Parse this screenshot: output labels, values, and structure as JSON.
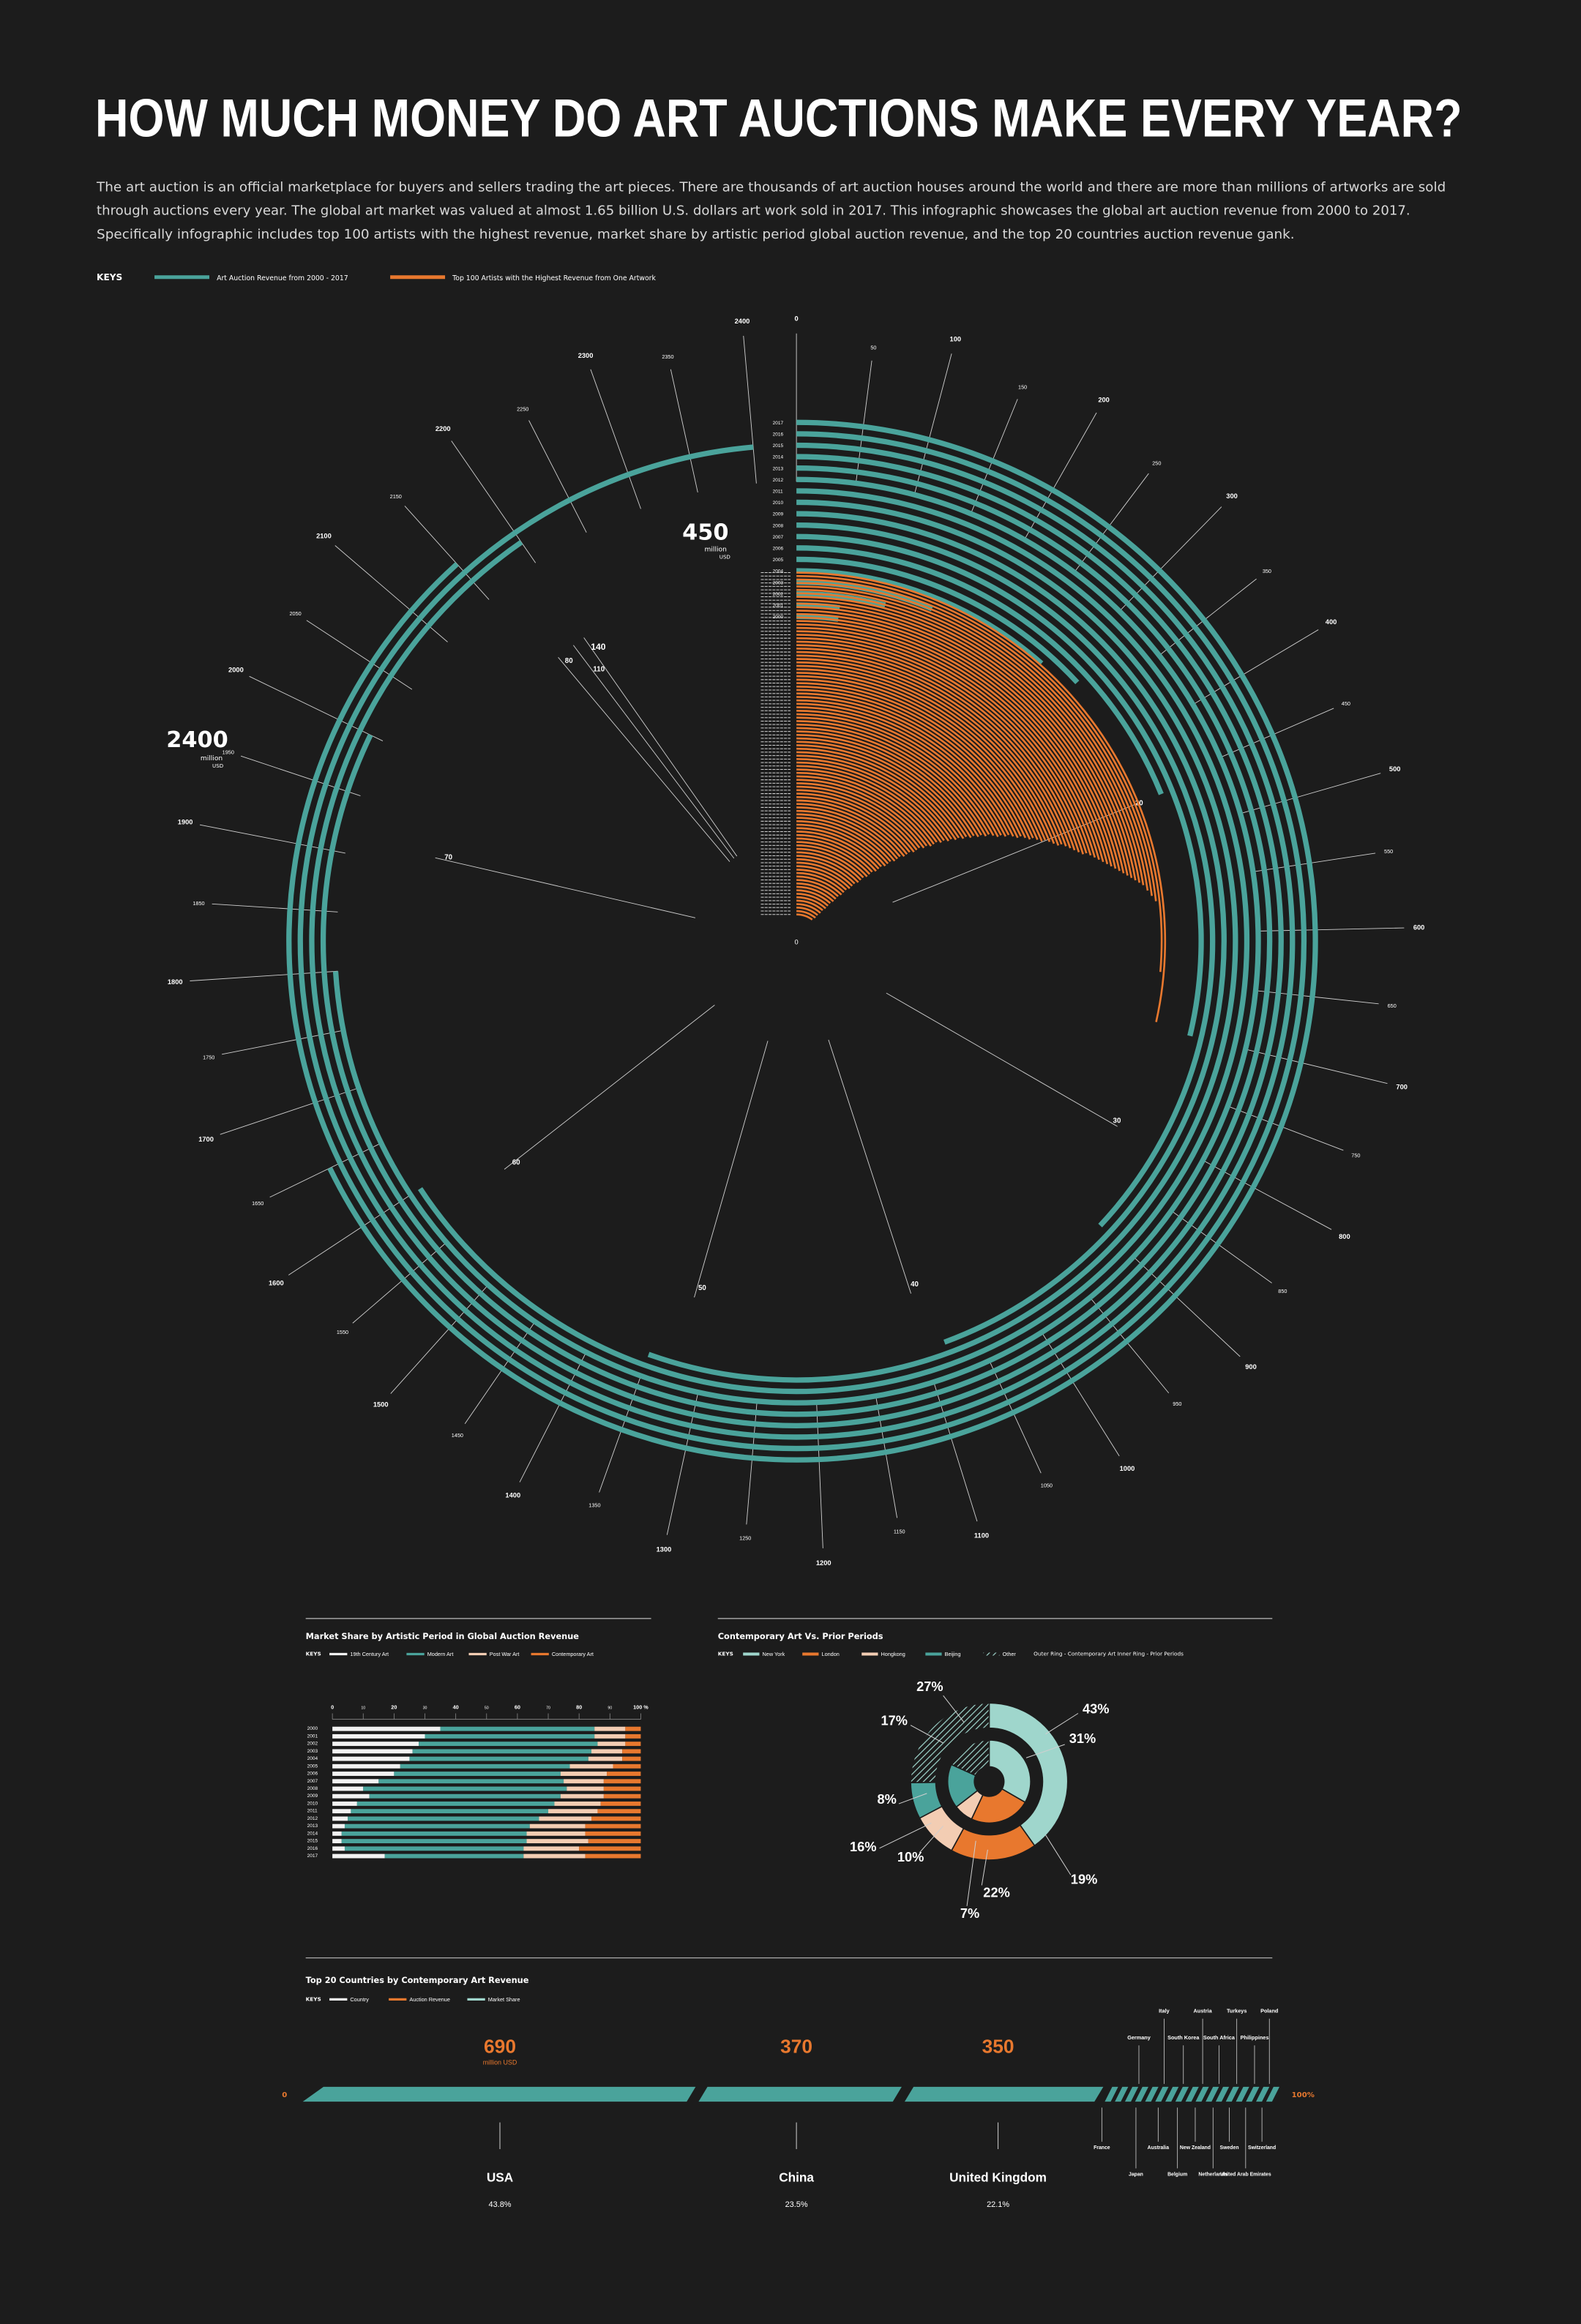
{
  "title": "HOW MUCH MONEY DO ART AUCTIONS MAKE EVERY YEAR?",
  "intro": [
    "The art auction is an official marketplace for buyers and sellers trading the art pieces. There are thousands of art auction houses around the world and there are more than millions of artworks are sold",
    "through auctions every year. The global art market was valued at almost 1.65 billion U.S. dollars art work sold in 2017. This infographic showcases the global art auction revenue from 2000 to 2017.",
    "Specifically infographic includes top 100 artists with the highest revenue, market share by artistic period global auction revenue, and the top 20 countries auction revenue gank."
  ],
  "keys": {
    "label": "KEYS",
    "items": [
      {
        "label": "Art Auction Revenue from 2000 - 2017",
        "color": "#4aa39b"
      },
      {
        "label": "Top 100 Artists with the Highest Revenue from One Artwork",
        "color": "#e8782e"
      }
    ]
  },
  "colors": {
    "teal": "#4aa39b",
    "orange": "#e8782e",
    "peach": "#f3cdb3",
    "mint": "#9fd6cc",
    "white": "#f2f2f2",
    "bg": "#1c1c1c"
  },
  "radial": {
    "teal_max_label": "2400",
    "teal_unit": "million",
    "teal_unit2": "USD",
    "orange_max_label": "450",
    "orange_unit": "million",
    "orange_unit2": "USD",
    "years": [
      "2000",
      "2001",
      "2002",
      "2003",
      "2004",
      "2005",
      "2006",
      "2007",
      "2008",
      "2009",
      "2010",
      "2011",
      "2012",
      "2013",
      "2014",
      "2015",
      "2016",
      "2017"
    ],
    "teal_ticks": [
      "0",
      "50",
      "100",
      "150",
      "200",
      "250",
      "300",
      "350",
      "400",
      "450",
      "500",
      "550",
      "600",
      "650",
      "700",
      "750",
      "800",
      "850",
      "900",
      "950",
      "1000",
      "1050",
      "1100",
      "1150",
      "1200",
      "1250",
      "1300",
      "1350",
      "1400",
      "1450",
      "1500",
      "1550",
      "1600",
      "1650",
      "1700",
      "1750",
      "1800",
      "1850",
      "1900",
      "1950",
      "2000",
      "2050",
      "2100",
      "2150",
      "2200",
      "2250",
      "2300",
      "2350",
      "2400"
    ],
    "orange_ticks": [
      "0",
      "20",
      "30",
      "40",
      "50",
      "60",
      "70",
      "80",
      "110",
      "140"
    ],
    "artist_label_count": 100
  },
  "market_share": {
    "title": "Market Share by Artistic Period in Global Auction Revenue",
    "keys_label": "KEYS",
    "keys": [
      "19th Century Art",
      "Modern Art",
      "Post War Art",
      "Contemporary Art"
    ],
    "axis": [
      "0",
      "10",
      "20",
      "30",
      "40",
      "50",
      "60",
      "70",
      "80",
      "90",
      "100 %"
    ]
  },
  "contemporary": {
    "title": "Contemporary Art Vs. Prior Periods",
    "keys_label": "KEYS",
    "keys": [
      "New York",
      "London",
      "Hongkong",
      "Beijing",
      "Other"
    ],
    "ring_note": "Outer Ring - Contemporary Art    Inner Ring - Prior Periods",
    "percent_labels": [
      "43%",
      "31%",
      "27%",
      "17%",
      "8%",
      "16%",
      "10%",
      "22%",
      "7%",
      "19%"
    ]
  },
  "countries": {
    "title": "Top 20 Countries by Contemporary Art Revenue",
    "keys_label": "KEYS",
    "keys": [
      "Country",
      "Auction Revenue",
      "Market Share"
    ],
    "axis_start": "0",
    "axis_end": "100%",
    "big": [
      {
        "name": "USA",
        "value": "690",
        "unit": "million USD",
        "share": "43.8%"
      },
      {
        "name": "China",
        "value": "370",
        "share": "23.5%"
      },
      {
        "name": "United Kingdom",
        "value": "350",
        "share": "22.1%"
      }
    ],
    "small_top": [
      "Germany",
      "Italy",
      "South Korea",
      "Austria",
      "South Africa",
      "Turkeys",
      "Philippines",
      "Poland"
    ],
    "small_bottom": [
      "France",
      "Japan",
      "Australia",
      "Belgium",
      "New Zealand",
      "Netherlands",
      "Sweden",
      "United Arab Emirates",
      "Switzerland"
    ]
  },
  "chart_data": [
    {
      "type": "bar",
      "title": "Art Auction Revenue from 2000 - 2017",
      "categories": [
        "2000",
        "2001",
        "2002",
        "2003",
        "2004",
        "2005",
        "2006",
        "2007",
        "2008",
        "2009",
        "2010",
        "2011",
        "2012",
        "2013",
        "2014",
        "2015",
        "2016",
        "2017"
      ],
      "values": [
        50,
        50,
        100,
        150,
        280,
        320,
        460,
        700,
        900,
        1080,
        1350,
        1600,
        1800,
        2000,
        2200,
        2400,
        2150,
        1650
      ],
      "ylabel": "million USD",
      "ylim": [
        0,
        2400
      ]
    },
    {
      "type": "bar",
      "title": "Top 100 Artists with the Highest Revenue from One Artwork",
      "values": [
        140,
        110,
        80,
        78,
        76,
        74,
        73,
        72,
        71,
        70,
        69,
        68,
        67,
        66,
        65,
        64,
        63,
        62,
        61,
        60,
        60,
        59,
        58,
        57,
        56,
        55,
        55,
        54,
        53,
        52,
        52,
        51,
        50,
        50,
        49,
        48,
        48,
        47,
        46,
        46,
        45,
        45,
        44,
        43,
        43,
        42,
        42,
        41,
        41,
        40,
        40,
        39,
        39,
        38,
        38,
        37,
        37,
        36,
        36,
        36,
        35,
        35,
        34,
        34,
        34,
        33,
        33,
        33,
        32,
        32,
        32,
        31,
        31,
        31,
        30,
        30,
        30,
        29,
        29,
        29,
        28,
        28,
        28,
        27,
        27,
        27,
        26,
        26,
        26,
        25,
        25,
        25,
        24,
        24,
        24,
        23,
        23,
        22,
        22,
        20
      ],
      "ylabel": "million USD",
      "ylim": [
        0,
        450
      ]
    },
    {
      "type": "bar",
      "title": "Market Share by Artistic Period in Global Auction Revenue",
      "categories": [
        "2000",
        "2001",
        "2002",
        "2003",
        "2004",
        "2005",
        "2006",
        "2007",
        "2008",
        "2009",
        "2010",
        "2011",
        "2012",
        "2013",
        "2014",
        "2015",
        "2016",
        "2017"
      ],
      "series": [
        {
          "name": "19th Century Art",
          "values": [
            35,
            30,
            28,
            26,
            25,
            22,
            20,
            15,
            10,
            12,
            8,
            6,
            5,
            4,
            3,
            3,
            4,
            17
          ]
        },
        {
          "name": "Modern Art",
          "values": [
            50,
            55,
            58,
            58,
            58,
            55,
            54,
            60,
            66,
            62,
            64,
            64,
            62,
            60,
            60,
            60,
            58,
            45
          ]
        },
        {
          "name": "Post War Art",
          "values": [
            10,
            10,
            9,
            10,
            11,
            14,
            15,
            13,
            12,
            14,
            15,
            16,
            17,
            18,
            19,
            20,
            18,
            20
          ]
        },
        {
          "name": "Contemporary Art",
          "values": [
            5,
            5,
            5,
            6,
            6,
            9,
            11,
            12,
            12,
            12,
            13,
            14,
            16,
            18,
            18,
            17,
            20,
            18
          ]
        }
      ],
      "ylim": [
        0,
        100
      ]
    },
    {
      "type": "pie",
      "title": "Contemporary Art Vs. Prior Periods",
      "series": [
        {
          "name": "Outer Ring - Contemporary Art",
          "labels": [
            "New York",
            "London",
            "Hongkong",
            "Beijing",
            "Other"
          ],
          "values": [
            43,
            19,
            10,
            8,
            27
          ]
        },
        {
          "name": "Inner Ring - Prior Periods",
          "labels": [
            "New York",
            "London",
            "Hongkong",
            "Beijing",
            "Other"
          ],
          "values": [
            31,
            22,
            7,
            16,
            17
          ]
        }
      ]
    },
    {
      "type": "bar",
      "title": "Top 20 Countries by Contemporary Art Revenue",
      "categories": [
        "USA",
        "China",
        "United Kingdom"
      ],
      "values": [
        690,
        370,
        350
      ],
      "ylabel": "million USD"
    }
  ]
}
